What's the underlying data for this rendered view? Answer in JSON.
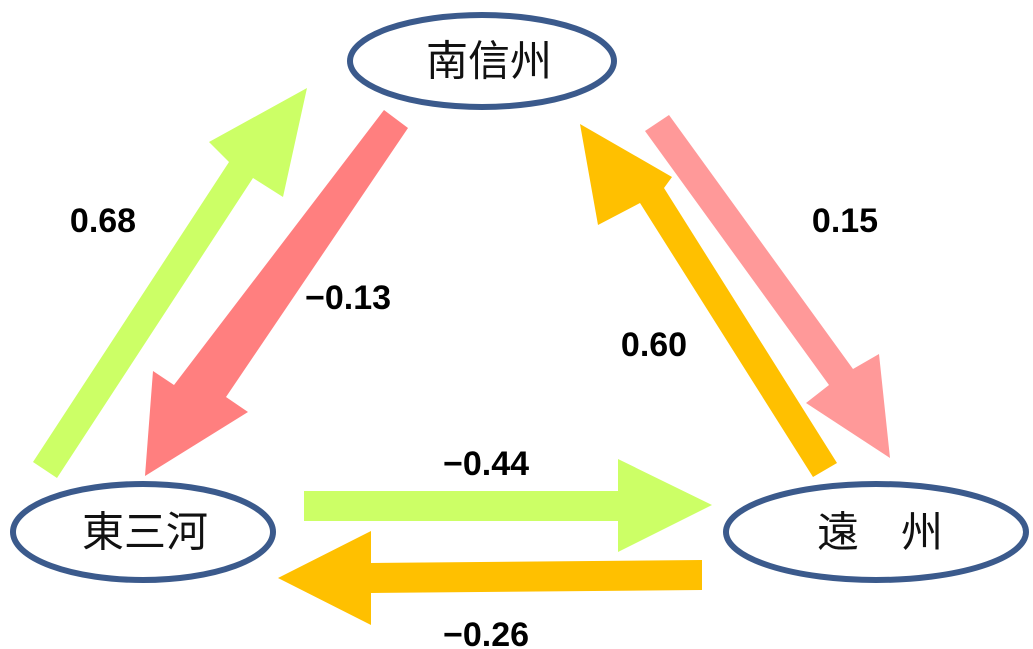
{
  "nodes": {
    "minami_shinshu": "南信州",
    "higashi_mikawa": "東三河",
    "enshu": "遠　州"
  },
  "edges": {
    "mikawa_to_shinshu": {
      "value": "0.68",
      "color": "#ccff66"
    },
    "shinshu_to_mikawa": {
      "value": "−0.13",
      "color": "#ff7f7f"
    },
    "shinshu_to_enshu": {
      "value": "0.15",
      "color": "#ff9999"
    },
    "enshu_to_shinshu": {
      "value": "0.60",
      "color": "#ffc000"
    },
    "mikawa_to_enshu": {
      "value": "−0.44",
      "color": "#ccff66"
    },
    "enshu_to_mikawa": {
      "value": "−0.26",
      "color": "#ffc000"
    }
  },
  "colors": {
    "node_border": "#3b5a8c",
    "node_fill": "#ffffff"
  }
}
